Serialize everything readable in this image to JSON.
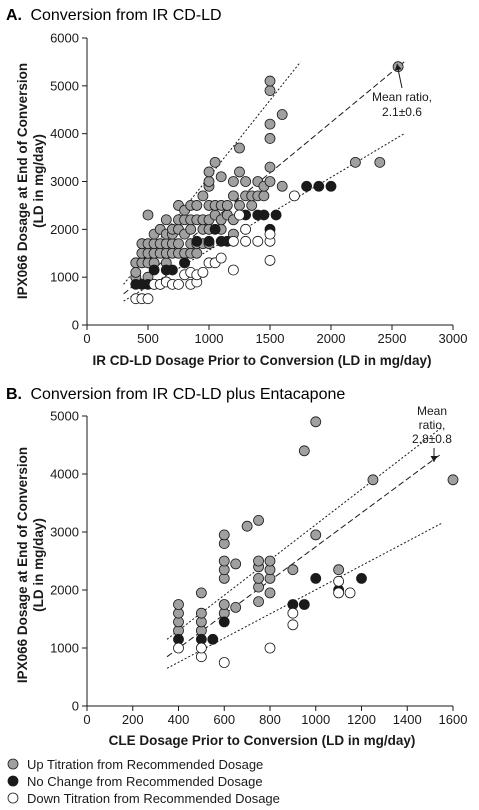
{
  "chart_data": [
    {
      "type": "scatter",
      "panel_letter": "A.",
      "title": "Conversion from IR CD-LD",
      "xlabel": "IR CD-LD Dosage Prior to Conversion (LD in mg/day)",
      "ylabel_line1": "IPX066 Dosage at End of Conversion",
      "ylabel_line2": "(LD in mg/day)",
      "xlim": [
        0,
        3000
      ],
      "ylim": [
        0,
        6000
      ],
      "xticks": [
        "0",
        "500",
        "1000",
        "1500",
        "2000",
        "2500",
        "3000"
      ],
      "yticks": [
        "0",
        "1000",
        "2000",
        "3000",
        "4000",
        "5000",
        "6000"
      ],
      "annotation_line1": "Mean ratio,",
      "annotation_line2": "2.1±0.6",
      "series": [
        {
          "name": "Up Titration from Recommended Dosage",
          "color": "#a0a0a0",
          "points": [
            [
              400,
              1000
            ],
            [
              400,
              1300
            ],
            [
              400,
              1100
            ],
            [
              450,
              1300
            ],
            [
              450,
              1500
            ],
            [
              450,
              1700
            ],
            [
              500,
              1000
            ],
            [
              500,
              1300
            ],
            [
              500,
              1500
            ],
            [
              500,
              1700
            ],
            [
              500,
              2300
            ],
            [
              550,
              1300
            ],
            [
              550,
              1500
            ],
            [
              550,
              1700
            ],
            [
              550,
              1900
            ],
            [
              600,
              1500
            ],
            [
              600,
              1700
            ],
            [
              600,
              2000
            ],
            [
              650,
              1300
            ],
            [
              650,
              1500
            ],
            [
              650,
              1700
            ],
            [
              650,
              1900
            ],
            [
              650,
              2200
            ],
            [
              700,
              1500
            ],
            [
              700,
              1700
            ],
            [
              700,
              1900
            ],
            [
              700,
              2000
            ],
            [
              750,
              1500
            ],
            [
              750,
              1700
            ],
            [
              750,
              2000
            ],
            [
              750,
              2200
            ],
            [
              750,
              2500
            ],
            [
              800,
              1300
            ],
            [
              800,
              1500
            ],
            [
              800,
              1900
            ],
            [
              800,
              2200
            ],
            [
              800,
              2400
            ],
            [
              850,
              1500
            ],
            [
              850,
              1700
            ],
            [
              850,
              2000
            ],
            [
              850,
              2200
            ],
            [
              850,
              2500
            ],
            [
              900,
              1500
            ],
            [
              900,
              1700
            ],
            [
              900,
              2200
            ],
            [
              900,
              2500
            ],
            [
              950,
              1700
            ],
            [
              950,
              2000
            ],
            [
              950,
              2200
            ],
            [
              950,
              2700
            ],
            [
              1000,
              1700
            ],
            [
              1000,
              2000
            ],
            [
              1000,
              2200
            ],
            [
              1000,
              2500
            ],
            [
              1000,
              2900
            ],
            [
              1000,
              3000
            ],
            [
              1000,
              3200
            ],
            [
              1050,
              2300
            ],
            [
              1050,
              2500
            ],
            [
              1050,
              3400
            ],
            [
              1100,
              2000
            ],
            [
              1100,
              2200
            ],
            [
              1100,
              2500
            ],
            [
              1100,
              3100
            ],
            [
              1150,
              2300
            ],
            [
              1150,
              2500
            ],
            [
              1200,
              1900
            ],
            [
              1200,
              2200
            ],
            [
              1200,
              2700
            ],
            [
              1200,
              3000
            ],
            [
              1250,
              2500
            ],
            [
              1250,
              3200
            ],
            [
              1250,
              3700
            ],
            [
              1300,
              2700
            ],
            [
              1300,
              3000
            ],
            [
              1350,
              2500
            ],
            [
              1350,
              2700
            ],
            [
              1400,
              2700
            ],
            [
              1400,
              3000
            ],
            [
              1450,
              2700
            ],
            [
              1450,
              2900
            ],
            [
              1500,
              3000
            ],
            [
              1500,
              3300
            ],
            [
              1500,
              3900
            ],
            [
              1500,
              4200
            ],
            [
              1500,
              4900
            ],
            [
              1500,
              5100
            ],
            [
              1600,
              2900
            ],
            [
              1600,
              4400
            ],
            [
              2200,
              3400
            ],
            [
              2400,
              3400
            ],
            [
              2550,
              5400
            ]
          ]
        },
        {
          "name": "No Change from Recommended Dosage",
          "color": "#1a1a1a",
          "points": [
            [
              400,
              850
            ],
            [
              450,
              850
            ],
            [
              500,
              850
            ],
            [
              550,
              850
            ],
            [
              600,
              850
            ],
            [
              550,
              1150
            ],
            [
              650,
              1150
            ],
            [
              700,
              1150
            ],
            [
              800,
              1300
            ],
            [
              900,
              1750
            ],
            [
              1000,
              1750
            ],
            [
              1050,
              2000
            ],
            [
              1100,
              1750
            ],
            [
              1150,
              1750
            ],
            [
              1300,
              2300
            ],
            [
              1400,
              2300
            ],
            [
              1450,
              2300
            ],
            [
              1500,
              2000
            ],
            [
              1550,
              2300
            ],
            [
              1800,
              2900
            ],
            [
              1900,
              2900
            ],
            [
              2000,
              2900
            ]
          ]
        },
        {
          "name": "Down Titration from Recommended Dosage",
          "color": "#ffffff",
          "points": [
            [
              400,
              550
            ],
            [
              450,
              550
            ],
            [
              500,
              550
            ],
            [
              550,
              850
            ],
            [
              600,
              850
            ],
            [
              650,
              900
            ],
            [
              700,
              850
            ],
            [
              750,
              850
            ],
            [
              800,
              1050
            ],
            [
              850,
              850
            ],
            [
              850,
              1100
            ],
            [
              900,
              900
            ],
            [
              900,
              1050
            ],
            [
              950,
              1100
            ],
            [
              1000,
              1300
            ],
            [
              1050,
              1300
            ],
            [
              1100,
              1400
            ],
            [
              1200,
              1150
            ],
            [
              1200,
              1750
            ],
            [
              1250,
              2300
            ],
            [
              1300,
              1750
            ],
            [
              1300,
              2000
            ],
            [
              1400,
              1750
            ],
            [
              1500,
              1350
            ],
            [
              1500,
              1750
            ],
            [
              1500,
              1900
            ],
            [
              1700,
              2700
            ]
          ]
        }
      ],
      "trendlines": [
        {
          "from": [
            300,
            850
          ],
          "to": [
            1750,
            5500
          ]
        },
        {
          "from": [
            300,
            650
          ],
          "to": [
            2600,
            5500
          ]
        },
        {
          "from": [
            300,
            500
          ],
          "to": [
            2600,
            4000
          ]
        }
      ]
    },
    {
      "type": "scatter",
      "panel_letter": "B.",
      "title": "Conversion from IR CD-LD plus Entacapone",
      "xlabel": "CLE Dosage Prior to Conversion (LD in mg/day)",
      "ylabel_line1": "IPX066 Dosage at End of Conversion",
      "ylabel_line2": "(LD in mg/day)",
      "xlim": [
        0,
        1600
      ],
      "ylim": [
        0,
        5000
      ],
      "xticks": [
        "0",
        "200",
        "400",
        "600",
        "800",
        "1000",
        "1200",
        "1400",
        "1600"
      ],
      "yticks": [
        "0",
        "1000",
        "2000",
        "3000",
        "4000",
        "5000"
      ],
      "annotation_line1": "Mean",
      "annotation_line2": "ratio,",
      "annotation_line3": "2.8±0.8",
      "series": [
        {
          "name": "Up Titration from Recommended Dosage",
          "color": "#a0a0a0",
          "points": [
            [
              400,
              1300
            ],
            [
              400,
              1450
            ],
            [
              400,
              1600
            ],
            [
              400,
              1750
            ],
            [
              500,
              1300
            ],
            [
              500,
              1450
            ],
            [
              500,
              1600
            ],
            [
              500,
              1950
            ],
            [
              600,
              1600
            ],
            [
              600,
              1750
            ],
            [
              600,
              2200
            ],
            [
              600,
              2350
            ],
            [
              600,
              2500
            ],
            [
              600,
              2800
            ],
            [
              600,
              2950
            ],
            [
              650,
              1700
            ],
            [
              650,
              2450
            ],
            [
              700,
              3100
            ],
            [
              750,
              1800
            ],
            [
              750,
              2050
            ],
            [
              750,
              2200
            ],
            [
              750,
              2400
            ],
            [
              750,
              2500
            ],
            [
              750,
              3200
            ],
            [
              800,
              1950
            ],
            [
              800,
              2200
            ],
            [
              800,
              2350
            ],
            [
              800,
              2500
            ],
            [
              900,
              2350
            ],
            [
              950,
              4400
            ],
            [
              1000,
              2950
            ],
            [
              1000,
              4900
            ],
            [
              1100,
              2350
            ],
            [
              1250,
              3900
            ],
            [
              1600,
              3900
            ]
          ]
        },
        {
          "name": "No Change from Recommended Dosage",
          "color": "#1a1a1a",
          "points": [
            [
              400,
              1150
            ],
            [
              500,
              1150
            ],
            [
              550,
              1150
            ],
            [
              600,
              1450
            ],
            [
              900,
              1750
            ],
            [
              950,
              1750
            ],
            [
              1000,
              2200
            ],
            [
              1100,
              2000
            ],
            [
              1200,
              2200
            ]
          ]
        },
        {
          "name": "Down Titration from Recommended Dosage",
          "color": "#ffffff",
          "points": [
            [
              400,
              1000
            ],
            [
              500,
              850
            ],
            [
              500,
              1000
            ],
            [
              600,
              750
            ],
            [
              800,
              1000
            ],
            [
              900,
              1400
            ],
            [
              900,
              1600
            ],
            [
              1100,
              1950
            ],
            [
              1100,
              2150
            ],
            [
              1150,
              1950
            ]
          ]
        }
      ],
      "trendlines": [
        {
          "from": [
            350,
            1150
          ],
          "to": [
            1550,
            4800
          ]
        },
        {
          "from": [
            350,
            850
          ],
          "to": [
            1550,
            4350
          ]
        },
        {
          "from": [
            350,
            650
          ],
          "to": [
            1550,
            3150
          ]
        }
      ]
    }
  ],
  "legend": [
    {
      "label": "Up Titration from Recommended Dosage",
      "color": "#a0a0a0"
    },
    {
      "label": "No Change from Recommended Dosage",
      "color": "#1a1a1a"
    },
    {
      "label": "Down Titration from Recommended Dosage",
      "color": "#ffffff"
    }
  ]
}
